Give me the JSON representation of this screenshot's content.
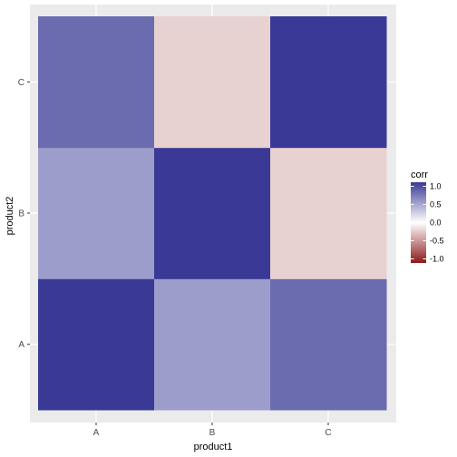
{
  "chart_data": {
    "type": "heatmap",
    "xlabel": "product1",
    "ylabel": "product2",
    "x_categories": [
      "A",
      "B",
      "C"
    ],
    "y_categories": [
      "A",
      "B",
      "C"
    ],
    "cells": [
      {
        "x": "A",
        "y": "A",
        "value": 1.0
      },
      {
        "x": "B",
        "y": "A",
        "value": 0.5
      },
      {
        "x": "C",
        "y": "A",
        "value": 0.75
      },
      {
        "x": "A",
        "y": "B",
        "value": 0.5
      },
      {
        "x": "B",
        "y": "B",
        "value": 1.0
      },
      {
        "x": "C",
        "y": "B",
        "value": -0.2
      },
      {
        "x": "A",
        "y": "C",
        "value": 0.75
      },
      {
        "x": "B",
        "y": "C",
        "value": -0.2
      },
      {
        "x": "C",
        "y": "C",
        "value": 1.0
      }
    ],
    "legend": {
      "title": "corr",
      "position": "right",
      "min": -1.0,
      "max": 1.0,
      "ticks": [
        1.0,
        0.5,
        0.0,
        -0.5,
        -1.0
      ],
      "tick_labels": [
        "1.0",
        "0.5",
        "0.0",
        "-0.5",
        "-1.0"
      ]
    },
    "colors": {
      "low": "#8b1a1a",
      "mid": "#ffffff",
      "high": "#3a3a96",
      "panel_background": "#ebebeb",
      "gridline": "#ffffff"
    },
    "grid": true
  }
}
